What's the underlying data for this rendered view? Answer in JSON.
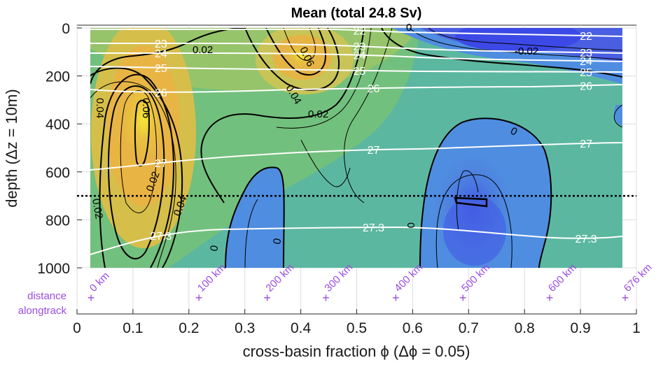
{
  "chart_data": {
    "type": "contour",
    "title": "Mean (total 24.8 Sv)",
    "xlabel": "cross-basin fraction ϕ (Δϕ = 0.05)",
    "ylabel": "depth (Δz = 10m)",
    "xlim": [
      0,
      1
    ],
    "ylim": [
      0,
      1000
    ],
    "y_reversed": true,
    "x_ticks": [
      "0",
      "0.1",
      "0.2",
      "0.3",
      "0.4",
      "0.5",
      "0.6",
      "0.7",
      "0.8",
      "0.9",
      "1"
    ],
    "y_ticks": [
      "0",
      "200",
      "400",
      "600",
      "800",
      "1000"
    ],
    "grid": true,
    "reference_depth": 700,
    "fill_contour_labels": [
      "0.02",
      "0.04",
      "0.06",
      "0.02",
      "0.04",
      "0.06",
      "0.02",
      "0.04",
      "0.02",
      "0",
      "0",
      "0",
      "-0.02",
      "0",
      "0"
    ],
    "density_contours": [
      {
        "value": "22",
        "label_x": [
          0.505,
          0.91
        ]
      },
      {
        "value": "23",
        "label_x": [
          0.15,
          0.505,
          0.91
        ]
      },
      {
        "value": "24",
        "label_x": [
          0.15,
          0.505,
          0.91
        ]
      },
      {
        "value": "25",
        "label_x": [
          0.15,
          0.505,
          0.91
        ]
      },
      {
        "value": "26",
        "label_x": [
          0.15,
          0.53,
          0.91
        ]
      },
      {
        "value": "27",
        "label_x": [
          0.15,
          0.53,
          0.91
        ]
      },
      {
        "value": "27.3",
        "label_x": [
          0.15,
          0.53,
          0.91
        ]
      }
    ],
    "distance_axis": {
      "label": [
        "distance",
        "alongtrack"
      ],
      "marks": [
        {
          "phi": 0.025,
          "label": "0 km"
        },
        {
          "phi": 0.218,
          "label": "100 km"
        },
        {
          "phi": 0.34,
          "label": "200 km"
        },
        {
          "phi": 0.445,
          "label": "300 km"
        },
        {
          "phi": 0.57,
          "label": "400 km"
        },
        {
          "phi": 0.69,
          "label": "500 km"
        },
        {
          "phi": 0.845,
          "label": "600 km"
        },
        {
          "phi": 0.98,
          "label": "676 km"
        }
      ]
    }
  }
}
